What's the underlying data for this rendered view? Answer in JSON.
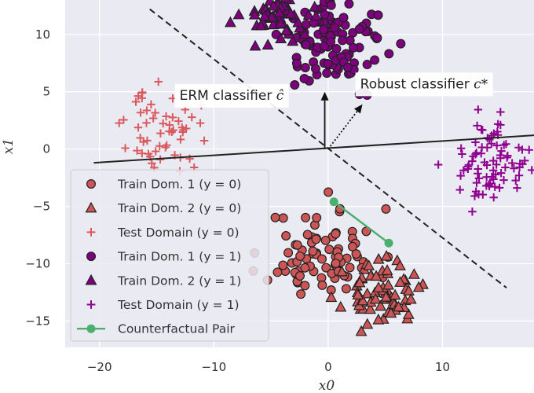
{
  "chart_data": {
    "type": "scatter",
    "title": "",
    "xlabel": "x0",
    "ylabel": "x1",
    "xlim": [
      -23,
      18
    ],
    "ylim": [
      -17.3,
      13
    ],
    "grid": true,
    "legend_position": "lower-left",
    "x_ticks": [
      {
        "value": -20,
        "label": "−20"
      },
      {
        "value": -10,
        "label": "−10"
      },
      {
        "value": 0,
        "label": "0"
      },
      {
        "value": 10,
        "label": "10"
      }
    ],
    "y_ticks": [
      {
        "value": 10,
        "label": "10"
      },
      {
        "value": 5,
        "label": "5"
      },
      {
        "value": 0,
        "label": "0"
      },
      {
        "value": -5,
        "label": "−5"
      },
      {
        "value": -10,
        "label": "−10"
      },
      {
        "value": -15,
        "label": "−15"
      }
    ],
    "clusters": [
      {
        "key": "train1_y0",
        "name": "Train Dom. 1 (y = 0)",
        "marker": "circle",
        "color": "#cd5555",
        "edge": "#222222",
        "center": [
          -0.5,
          -9.2
        ],
        "spread": [
          2.4,
          2.0
        ],
        "n": 85,
        "seed": 11
      },
      {
        "key": "train2_y0",
        "name": "Train Dom. 2 (y = 0)",
        "marker": "triangle",
        "color": "#cd5555",
        "edge": "#222222",
        "center": [
          4.6,
          -12.6
        ],
        "spread": [
          1.6,
          1.3
        ],
        "n": 70,
        "seed": 23
      },
      {
        "key": "test_y0",
        "name": "Test Domain (y = 0)",
        "marker": "plus",
        "color": "#d9595f",
        "edge": null,
        "center": [
          -14.5,
          1.5
        ],
        "spread": [
          1.6,
          1.8
        ],
        "n": 55,
        "seed": 37
      },
      {
        "key": "train1_y1",
        "name": "Train Dom. 1 (y = 1)",
        "marker": "circle",
        "color": "#7e007e",
        "edge": "#222222",
        "center": [
          0.6,
          9.3
        ],
        "spread": [
          2.2,
          1.8
        ],
        "n": 110,
        "seed": 41
      },
      {
        "key": "train2_y1",
        "name": "Train Dom. 2 (y = 1)",
        "marker": "triangle",
        "color": "#7e007e",
        "edge": "#222222",
        "center": [
          -4.3,
          11.6
        ],
        "spread": [
          1.6,
          1.1
        ],
        "n": 55,
        "seed": 53
      },
      {
        "key": "test_y1",
        "name": "Test Domain (y = 1)",
        "marker": "plus",
        "color": "#8f008f",
        "edge": null,
        "center": [
          14.3,
          -1.6
        ],
        "spread": [
          1.6,
          1.9
        ],
        "n": 80,
        "seed": 67
      }
    ],
    "lines": {
      "erm_boundary": {
        "from": [
          -20.5,
          -1.2
        ],
        "to": [
          18.0,
          1.2
        ],
        "color": "#222222",
        "style": "solid"
      },
      "robust_boundary": {
        "from": [
          -15.6,
          12.2
        ],
        "to": [
          15.6,
          -12.1
        ],
        "color": "#222222",
        "style": "dashed"
      },
      "erm_arrow": {
        "from": [
          -0.3,
          0.0
        ],
        "to": [
          -0.3,
          5.0
        ],
        "style": "solid"
      },
      "robust_arrow": {
        "from": [
          0.0,
          0.0
        ],
        "to": [
          3.0,
          3.9
        ],
        "style": "dotted"
      }
    },
    "counterfactual_pair": {
      "name": "Counterfactual Pair",
      "color": "#4caf6e",
      "points": [
        [
          0.5,
          -4.6
        ],
        [
          5.3,
          -8.2
        ]
      ]
    },
    "annotations": [
      {
        "key": "erm",
        "text": "ERM classifier ",
        "symbol": "ĉ",
        "anchor": [
          -13,
          4.3
        ]
      },
      {
        "key": "robust",
        "text": "Robust classifier ",
        "symbol": "c*",
        "anchor": [
          2.8,
          5.3
        ]
      }
    ]
  }
}
